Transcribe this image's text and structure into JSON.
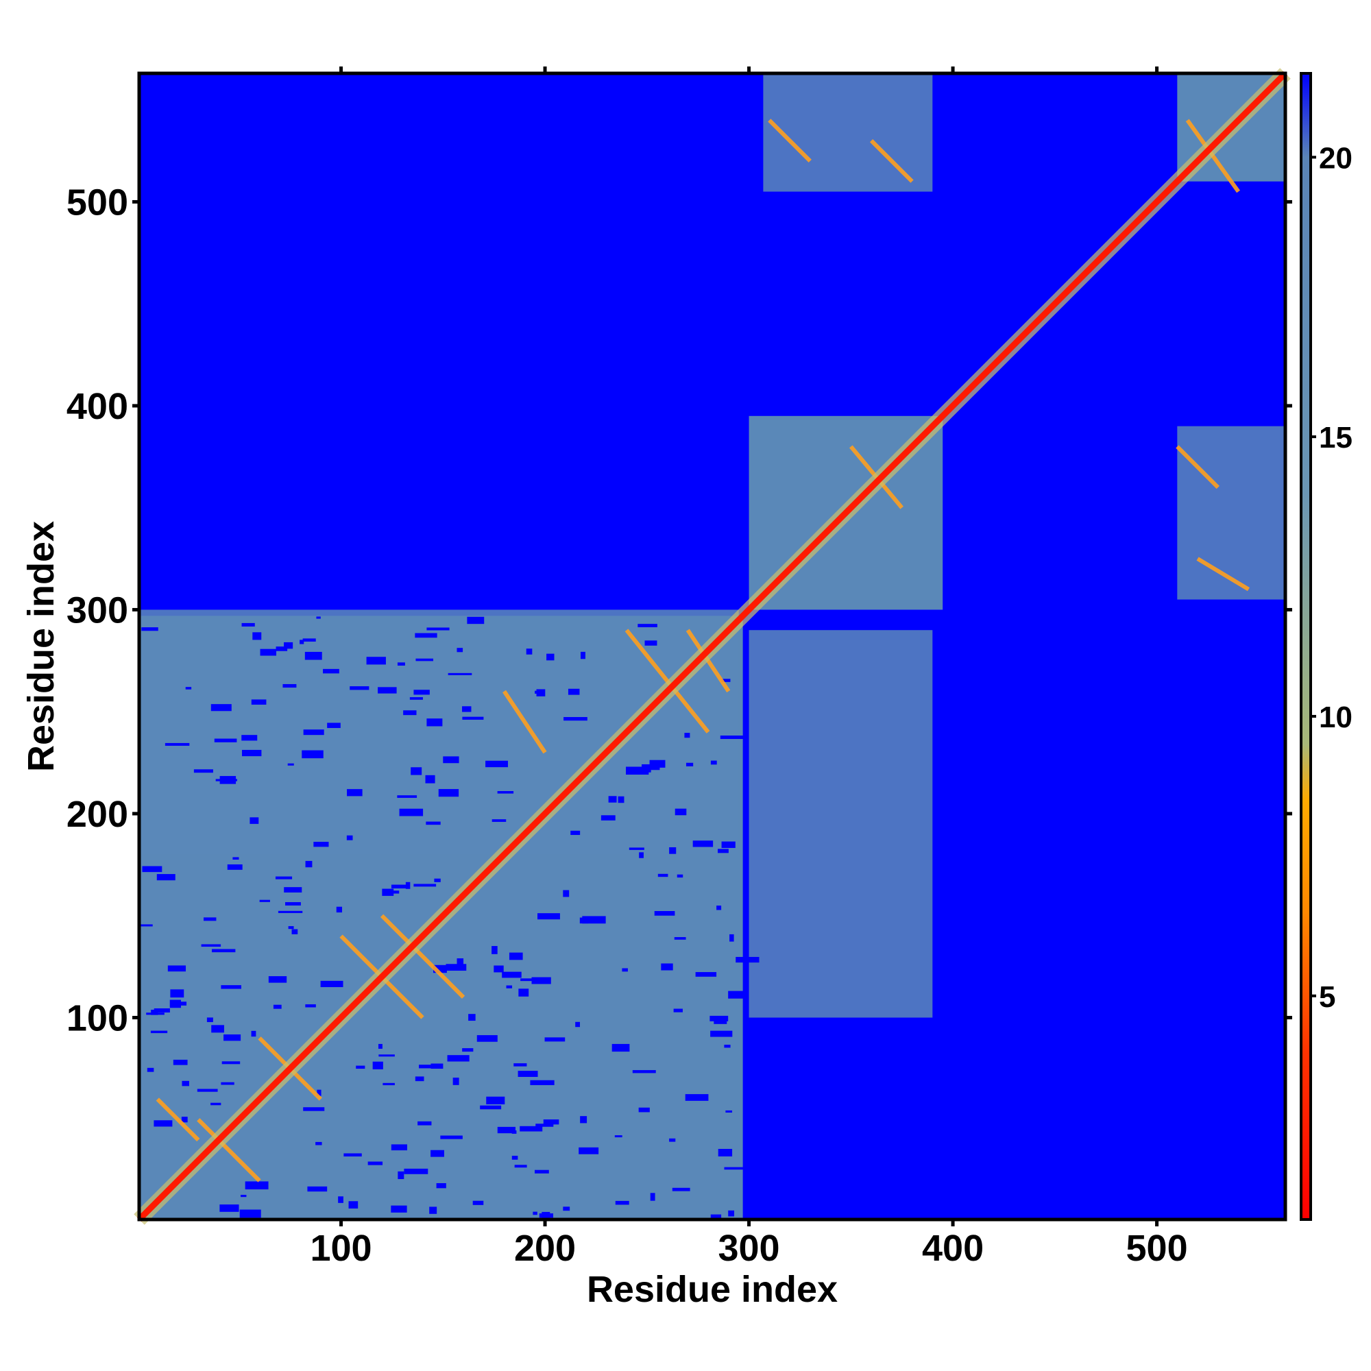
{
  "chart_data": {
    "type": "heatmap",
    "title": "",
    "xlabel": "Residue index",
    "ylabel": "Residue index",
    "xlim": [
      1,
      563
    ],
    "ylim": [
      1,
      563
    ],
    "x_ticks": [
      100,
      200,
      300,
      400,
      500
    ],
    "y_ticks": [
      100,
      200,
      300,
      400,
      500
    ],
    "colorbar": {
      "label": "",
      "range": [
        1,
        21.5
      ],
      "ticks": [
        5,
        10,
        15,
        20
      ],
      "colors": [
        {
          "value": 1,
          "color": "#ff0000"
        },
        {
          "value": 4,
          "color": "#ff3300"
        },
        {
          "value": 6.5,
          "color": "#ff8800"
        },
        {
          "value": 8.5,
          "color": "#ffaa00"
        },
        {
          "value": 9.5,
          "color": "#a8b878"
        },
        {
          "value": 14,
          "color": "#6a96b4"
        },
        {
          "value": 20,
          "color": "#5a84b6"
        },
        {
          "value": 21.5,
          "color": "#0000ff"
        }
      ]
    },
    "background_value": 21.5,
    "background_color": "#0000ff",
    "domain_color": "#5a88b8",
    "diagonal_color": "#ff1a00",
    "contact_color": "#ffa020",
    "domains": [
      {
        "name": "",
        "range": [
          1,
          297
        ]
      },
      {
        "name": "",
        "range": [
          300,
          395
        ]
      },
      {
        "name": "",
        "range": [
          510,
          563
        ]
      }
    ],
    "contact_blocks": [
      {
        "x": [
          307,
          390
        ],
        "y": [
          505,
          563
        ]
      },
      {
        "x": [
          510,
          563
        ],
        "y": [
          305,
          390
        ]
      },
      {
        "x": [
          1,
          295
        ],
        "y": [
          180,
          300
        ]
      },
      {
        "x": [
          300,
          390
        ],
        "y": [
          100,
          290
        ]
      }
    ]
  }
}
